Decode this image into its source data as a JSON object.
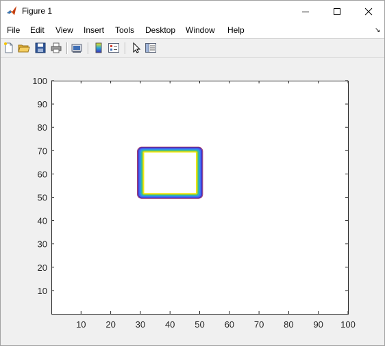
{
  "window": {
    "title": "Figure 1",
    "controls": {
      "minimize": "minimize-icon",
      "maximize": "maximize-icon",
      "close": "close-icon"
    }
  },
  "menu": {
    "items": [
      "File",
      "Edit",
      "View",
      "Insert",
      "Tools",
      "Desktop",
      "Window",
      "Help"
    ]
  },
  "toolbar": {
    "buttons": [
      "new-figure-icon",
      "open-file-icon",
      "save-icon",
      "print-icon",
      "print-preview-icon",
      "insert-colorbar-icon",
      "insert-legend-icon",
      "edit-plot-arrow-icon",
      "property-editor-icon"
    ]
  },
  "chart_data": {
    "type": "contour",
    "xlim": [
      0,
      100
    ],
    "ylim": [
      0,
      100
    ],
    "x_ticks": [
      10,
      20,
      30,
      40,
      50,
      60,
      70,
      80,
      90,
      100
    ],
    "y_ticks": [
      10,
      20,
      30,
      40,
      50,
      60,
      70,
      80,
      90,
      100
    ],
    "title": "",
    "xlabel": "",
    "ylabel": "",
    "grid": false,
    "contours": [
      {
        "x": [
          29,
          51
        ],
        "y": [
          49.5,
          71.5
        ],
        "color": "#a0306a"
      },
      {
        "x": [
          29.3,
          50.7
        ],
        "y": [
          49.8,
          71.2
        ],
        "color": "#3d2db8"
      },
      {
        "x": [
          29.6,
          50.4
        ],
        "y": [
          50.1,
          70.9
        ],
        "color": "#4a5ef0"
      },
      {
        "x": [
          29.9,
          50.1
        ],
        "y": [
          50.4,
          70.6
        ],
        "color": "#3c78f5"
      },
      {
        "x": [
          30.2,
          49.8
        ],
        "y": [
          50.7,
          70.3
        ],
        "color": "#2aa7d8"
      },
      {
        "x": [
          30.5,
          49.5
        ],
        "y": [
          51.0,
          70.0
        ],
        "color": "#34c08f"
      },
      {
        "x": [
          30.8,
          49.2
        ],
        "y": [
          51.3,
          69.7
        ],
        "color": "#9cca3a"
      },
      {
        "x": [
          31.1,
          48.9
        ],
        "y": [
          51.6,
          69.4
        ],
        "color": "#f2e812"
      }
    ]
  }
}
